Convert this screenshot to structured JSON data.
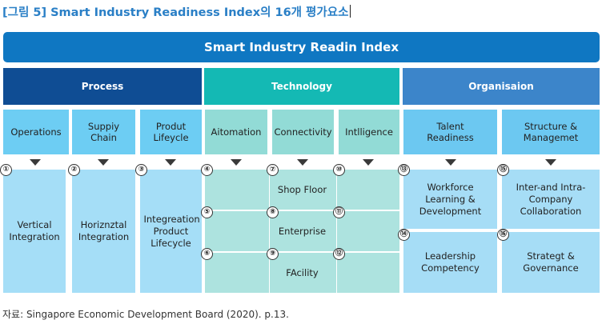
{
  "caption": "[그림 5] Smart Industry Readiness Index의 16개 평가요소",
  "title": "Smart Industry Readin Index",
  "categories": {
    "process": "Process",
    "technology": "Technology",
    "organisation": "Organisaion"
  },
  "subcategories": {
    "operations": "Operations",
    "supply_chain": "Suppiy Chain",
    "product_lifecycle": "Produt Lifeycle",
    "automation": "Aitomation",
    "connectivity": "Connectivity",
    "intelligence": "Intlligence",
    "talent_readiness": "Talent Readiness",
    "structure_management": "Structure & Managemet"
  },
  "dimensions": {
    "vertical_integration": "Vertical Integration",
    "horizontal_integration": "Horiznztal Integration",
    "integration_product_lifecycle": "Integreation Product Lifecycle",
    "shop_floor": "Shop Floor",
    "enterprise": "Enterprise",
    "facility": "FAcility",
    "workforce_learning": "Workforce Learning & Development",
    "leadership_competency": "Leadership Competency",
    "inter_intra_company": "Inter-and Intra-Company Collaboration",
    "strategy_governance": "Strategt & Governance"
  },
  "numbers": [
    "①",
    "②",
    "③",
    "④",
    "⑤",
    "⑥",
    "⑦",
    "⑧",
    "⑨",
    "⑩",
    "⑪",
    "⑫",
    "⑬",
    "⑭",
    "⑮",
    "⑯"
  ],
  "source": "자료: Singapore Economic Development Board (2020). p.13."
}
